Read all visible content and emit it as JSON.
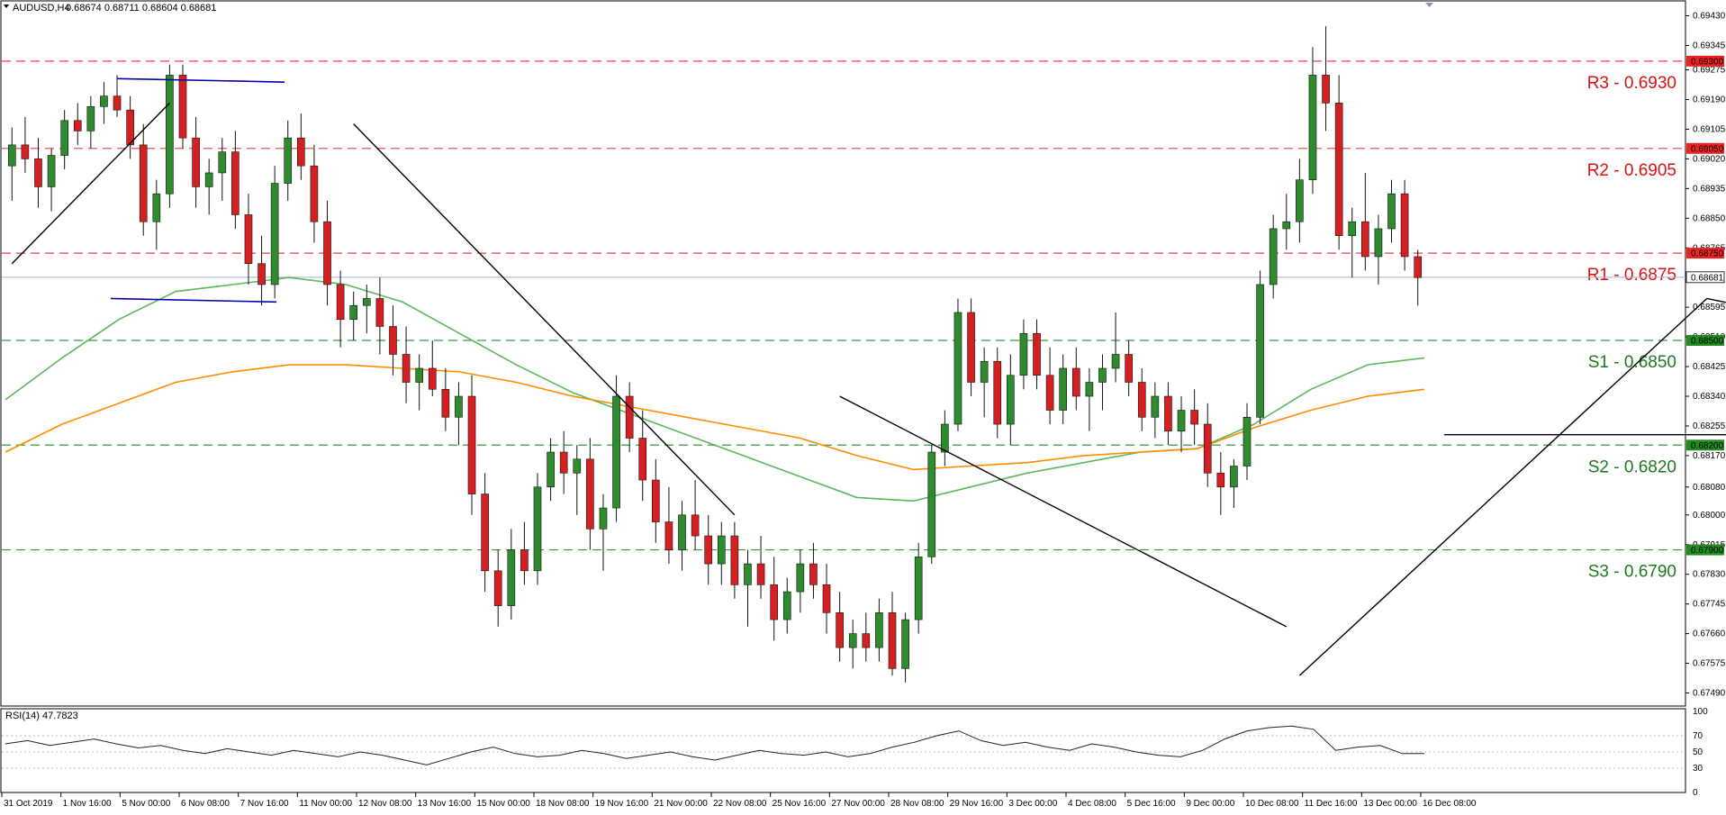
{
  "header": {
    "symbol_text": "AUDUSD,H4",
    "ohlc_text": "0.68674 0.68711 0.68604 0.68681",
    "rsi_title": "RSI(14) 47.7823"
  },
  "colors": {
    "bull": "#2e8b2e",
    "bear": "#d42020",
    "resistance": "#e84040",
    "support": "#3a9a3a",
    "ma_fast": "#5cb85c",
    "ma_slow": "#ff8c00",
    "trendline": "#000000",
    "range_line": "#0000aa",
    "price_line": "#a0b0c0"
  },
  "levels": [
    {
      "label": "R3 - 0.6930",
      "value": 0.693,
      "tag": "0.69300",
      "kind": "resistance"
    },
    {
      "label": "R2 - 0.6905",
      "value": 0.6905,
      "tag": "0.69050",
      "kind": "resistance"
    },
    {
      "label": "R1 - 0.6875",
      "value": 0.6875,
      "tag": "0.68750",
      "kind": "resistance"
    },
    {
      "label": "S1 - 0.6850",
      "value": 0.685,
      "tag": "0.68500",
      "kind": "support"
    },
    {
      "label": "S2 - 0.6820",
      "value": 0.682,
      "tag": "0.68200",
      "kind": "support"
    },
    {
      "label": "S3 - 0.6790",
      "value": 0.679,
      "tag": "0.67900",
      "kind": "support"
    }
  ],
  "current_price": {
    "value": 0.68681,
    "tag": "0.68681"
  },
  "chart_data": {
    "type": "candlestick",
    "title": "AUDUSD,H4",
    "price_ticks": [
      "0.69430",
      "0.69345",
      "0.69275",
      "0.69190",
      "0.69105",
      "0.69020",
      "0.68935",
      "0.68850",
      "0.68765",
      "0.68595",
      "0.68510",
      "0.68425",
      "0.68340",
      "0.68255",
      "0.68170",
      "0.68080",
      "0.68000",
      "0.67915",
      "0.67830",
      "0.67745",
      "0.67660",
      "0.67575",
      "0.67490"
    ],
    "ylim": [
      0.6745,
      0.6947
    ],
    "date_labels": [
      "31 Oct 2019",
      "1 Nov 16:00",
      "5 Nov 00:00",
      "6 Nov 08:00",
      "7 Nov 16:00",
      "11 Nov 00:00",
      "12 Nov 08:00",
      "13 Nov 16:00",
      "15 Nov 00:00",
      "18 Nov 08:00",
      "19 Nov 16:00",
      "21 Nov 00:00",
      "22 Nov 08:00",
      "25 Nov 16:00",
      "27 Nov 00:00",
      "28 Nov 08:00",
      "29 Nov 16:00",
      "3 Dec 00:00",
      "4 Dec 08:00",
      "5 Dec 16:00",
      "9 Dec 00:00",
      "10 Dec 08:00",
      "11 Dec 16:00",
      "13 Dec 00:00",
      "16 Dec 08:00"
    ],
    "candles": [
      [
        0.69,
        0.6911,
        0.689,
        0.6906
      ],
      [
        0.6906,
        0.6914,
        0.6898,
        0.6902
      ],
      [
        0.6902,
        0.6908,
        0.6888,
        0.6894
      ],
      [
        0.6894,
        0.6905,
        0.6887,
        0.6903
      ],
      [
        0.6903,
        0.6916,
        0.6899,
        0.6913
      ],
      [
        0.6913,
        0.6918,
        0.6906,
        0.691
      ],
      [
        0.691,
        0.692,
        0.6905,
        0.6917
      ],
      [
        0.6917,
        0.6924,
        0.6912,
        0.692
      ],
      [
        0.692,
        0.6926,
        0.6914,
        0.6916
      ],
      [
        0.6916,
        0.692,
        0.6902,
        0.6906
      ],
      [
        0.6906,
        0.6912,
        0.688,
        0.6884
      ],
      [
        0.6884,
        0.6896,
        0.6876,
        0.6892
      ],
      [
        0.6892,
        0.6929,
        0.6888,
        0.6926
      ],
      [
        0.6926,
        0.6929,
        0.6905,
        0.6908
      ],
      [
        0.6908,
        0.6914,
        0.6888,
        0.6894
      ],
      [
        0.6894,
        0.6902,
        0.6886,
        0.6898
      ],
      [
        0.6898,
        0.6908,
        0.689,
        0.6904
      ],
      [
        0.6904,
        0.691,
        0.6882,
        0.6886
      ],
      [
        0.6886,
        0.6892,
        0.6866,
        0.6872
      ],
      [
        0.6872,
        0.688,
        0.686,
        0.6866
      ],
      [
        0.6866,
        0.69,
        0.6862,
        0.6895
      ],
      [
        0.6895,
        0.6913,
        0.689,
        0.6908
      ],
      [
        0.6908,
        0.6915,
        0.6896,
        0.69
      ],
      [
        0.69,
        0.6906,
        0.6878,
        0.6884
      ],
      [
        0.6884,
        0.689,
        0.686,
        0.6866
      ],
      [
        0.6866,
        0.687,
        0.6848,
        0.6856
      ],
      [
        0.6856,
        0.6864,
        0.685,
        0.686
      ],
      [
        0.686,
        0.6866,
        0.6852,
        0.6862
      ],
      [
        0.6862,
        0.6868,
        0.6846,
        0.6854
      ],
      [
        0.6854,
        0.686,
        0.684,
        0.6846
      ],
      [
        0.6846,
        0.6854,
        0.6832,
        0.6838
      ],
      [
        0.6838,
        0.6846,
        0.683,
        0.6842
      ],
      [
        0.6842,
        0.685,
        0.6834,
        0.6836
      ],
      [
        0.6836,
        0.6842,
        0.6824,
        0.6828
      ],
      [
        0.6828,
        0.6838,
        0.682,
        0.6834
      ],
      [
        0.6834,
        0.684,
        0.68,
        0.6806
      ],
      [
        0.6806,
        0.6812,
        0.6778,
        0.6784
      ],
      [
        0.6784,
        0.679,
        0.6768,
        0.6774
      ],
      [
        0.6774,
        0.6796,
        0.677,
        0.679
      ],
      [
        0.679,
        0.6798,
        0.678,
        0.6784
      ],
      [
        0.6784,
        0.6812,
        0.678,
        0.6808
      ],
      [
        0.6808,
        0.6822,
        0.6804,
        0.6818
      ],
      [
        0.6818,
        0.6824,
        0.6806,
        0.6812
      ],
      [
        0.6812,
        0.682,
        0.68,
        0.6816
      ],
      [
        0.6816,
        0.6822,
        0.679,
        0.6796
      ],
      [
        0.6796,
        0.6806,
        0.6784,
        0.6802
      ],
      [
        0.6802,
        0.684,
        0.6798,
        0.6834
      ],
      [
        0.6834,
        0.6838,
        0.6818,
        0.6822
      ],
      [
        0.6822,
        0.683,
        0.6804,
        0.681
      ],
      [
        0.681,
        0.6816,
        0.6792,
        0.6798
      ],
      [
        0.6798,
        0.6808,
        0.6786,
        0.679
      ],
      [
        0.679,
        0.6804,
        0.6784,
        0.68
      ],
      [
        0.68,
        0.681,
        0.679,
        0.6794
      ],
      [
        0.6794,
        0.68,
        0.678,
        0.6786
      ],
      [
        0.6786,
        0.6798,
        0.678,
        0.6794
      ],
      [
        0.6794,
        0.6798,
        0.6776,
        0.678
      ],
      [
        0.678,
        0.679,
        0.6768,
        0.6786
      ],
      [
        0.6786,
        0.6794,
        0.6776,
        0.678
      ],
      [
        0.678,
        0.6788,
        0.6764,
        0.677
      ],
      [
        0.677,
        0.6782,
        0.6766,
        0.6778
      ],
      [
        0.6778,
        0.679,
        0.6772,
        0.6786
      ],
      [
        0.6786,
        0.6792,
        0.6776,
        0.678
      ],
      [
        0.678,
        0.6786,
        0.6766,
        0.6772
      ],
      [
        0.6772,
        0.6778,
        0.6758,
        0.6762
      ],
      [
        0.6762,
        0.677,
        0.6756,
        0.6766
      ],
      [
        0.6766,
        0.6772,
        0.6758,
        0.6762
      ],
      [
        0.6762,
        0.6776,
        0.6758,
        0.6772
      ],
      [
        0.6772,
        0.6778,
        0.6754,
        0.6756
      ],
      [
        0.6756,
        0.6772,
        0.6752,
        0.677
      ],
      [
        0.677,
        0.6792,
        0.6766,
        0.6788
      ],
      [
        0.6788,
        0.682,
        0.6786,
        0.6818
      ],
      [
        0.6818,
        0.683,
        0.6814,
        0.6826
      ],
      [
        0.6826,
        0.6862,
        0.6824,
        0.6858
      ],
      [
        0.6858,
        0.6862,
        0.6834,
        0.6838
      ],
      [
        0.6838,
        0.6848,
        0.6828,
        0.6844
      ],
      [
        0.6844,
        0.6848,
        0.6822,
        0.6826
      ],
      [
        0.6826,
        0.6846,
        0.682,
        0.684
      ],
      [
        0.684,
        0.6856,
        0.6836,
        0.6852
      ],
      [
        0.6852,
        0.6856,
        0.6836,
        0.684
      ],
      [
        0.684,
        0.6848,
        0.6826,
        0.683
      ],
      [
        0.683,
        0.6846,
        0.6826,
        0.6842
      ],
      [
        0.6842,
        0.6848,
        0.683,
        0.6834
      ],
      [
        0.6834,
        0.6842,
        0.6824,
        0.6838
      ],
      [
        0.6838,
        0.6846,
        0.683,
        0.6842
      ],
      [
        0.6842,
        0.6858,
        0.6838,
        0.6846
      ],
      [
        0.6846,
        0.685,
        0.6834,
        0.6838
      ],
      [
        0.6838,
        0.6842,
        0.6824,
        0.6828
      ],
      [
        0.6828,
        0.6838,
        0.6822,
        0.6834
      ],
      [
        0.6834,
        0.6838,
        0.682,
        0.6824
      ],
      [
        0.6824,
        0.6834,
        0.6818,
        0.683
      ],
      [
        0.683,
        0.6836,
        0.682,
        0.6826
      ],
      [
        0.6826,
        0.6832,
        0.6808,
        0.6812
      ],
      [
        0.6812,
        0.6818,
        0.68,
        0.6808
      ],
      [
        0.6808,
        0.6816,
        0.6802,
        0.6814
      ],
      [
        0.6814,
        0.6832,
        0.681,
        0.6828
      ],
      [
        0.6828,
        0.687,
        0.6826,
        0.6866
      ],
      [
        0.6866,
        0.6886,
        0.6862,
        0.6882
      ],
      [
        0.6882,
        0.6892,
        0.6876,
        0.6884
      ],
      [
        0.6884,
        0.6902,
        0.6878,
        0.6896
      ],
      [
        0.6896,
        0.6934,
        0.6892,
        0.6926
      ],
      [
        0.6926,
        0.694,
        0.691,
        0.6918
      ],
      [
        0.6918,
        0.6926,
        0.6876,
        0.688
      ],
      [
        0.688,
        0.6888,
        0.6868,
        0.6884
      ],
      [
        0.6884,
        0.6898,
        0.687,
        0.6874
      ],
      [
        0.6874,
        0.6886,
        0.6866,
        0.6882
      ],
      [
        0.6882,
        0.6896,
        0.6878,
        0.6892
      ],
      [
        0.6892,
        0.6896,
        0.687,
        0.6874
      ],
      [
        0.6874,
        0.6876,
        0.686,
        0.6868
      ]
    ],
    "ma_fast": [
      0.6833,
      0.6845,
      0.6856,
      0.6864,
      0.6866,
      0.6868,
      0.6866,
      0.6861,
      0.6852,
      0.6843,
      0.6835,
      0.6829,
      0.6823,
      0.6817,
      0.6811,
      0.6805,
      0.6804,
      0.6808,
      0.6812,
      0.6815,
      0.6818,
      0.6819,
      0.6826,
      0.6836,
      0.6843,
      0.6845
    ],
    "ma_slow": [
      0.6818,
      0.6826,
      0.6832,
      0.6838,
      0.6841,
      0.6843,
      0.6843,
      0.6842,
      0.6841,
      0.6838,
      0.6834,
      0.6831,
      0.6828,
      0.6825,
      0.6822,
      0.6817,
      0.6813,
      0.6814,
      0.6815,
      0.6817,
      0.6818,
      0.6819,
      0.6825,
      0.683,
      0.6834,
      0.6836
    ],
    "rsi": [
      60,
      64,
      58,
      62,
      66,
      60,
      55,
      58,
      52,
      48,
      54,
      50,
      46,
      52,
      48,
      44,
      50,
      46,
      40,
      34,
      42,
      50,
      56,
      48,
      44,
      46,
      52,
      48,
      42,
      46,
      50,
      44,
      40,
      46,
      52,
      48,
      46,
      50,
      44,
      48,
      56,
      62,
      70,
      76,
      64,
      58,
      62,
      56,
      52,
      60,
      56,
      50,
      46,
      44,
      52,
      66,
      76,
      80,
      82,
      78,
      52,
      56,
      58,
      48,
      48
    ],
    "rsi_ticks": [
      "100",
      "70",
      "50",
      "30",
      "0"
    ]
  }
}
